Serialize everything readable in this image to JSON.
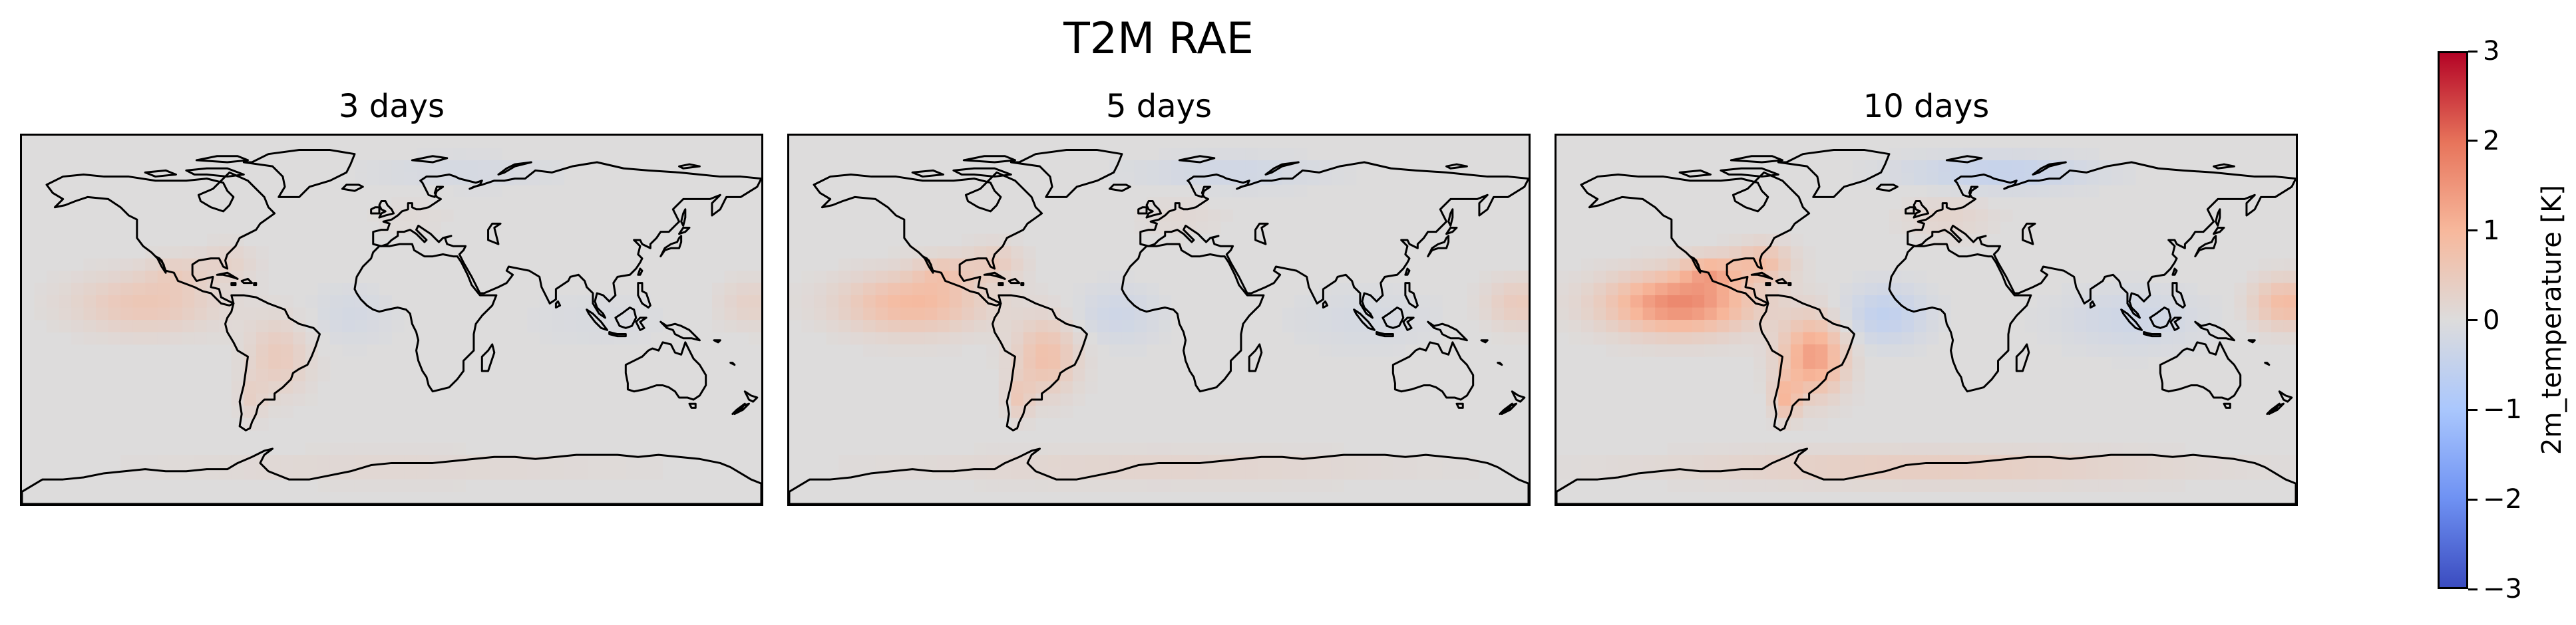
{
  "figure": {
    "title": "T2M RAE"
  },
  "panels": [
    {
      "title": "3 days",
      "intensity": 0.35
    },
    {
      "title": "5 days",
      "intensity": 0.55
    },
    {
      "title": "10 days",
      "intensity": 1.0
    }
  ],
  "colorbar": {
    "label": "2m_temperature [K]",
    "ticks": [
      "3",
      "2",
      "1",
      "0",
      "−1",
      "−2",
      "−3"
    ],
    "range": [
      -3,
      3
    ],
    "colormap": "coolwarm"
  },
  "colors": {
    "min": "#3b4cc0",
    "mid": "#dddcdc",
    "max": "#b40426",
    "coastline": "#000000"
  }
}
